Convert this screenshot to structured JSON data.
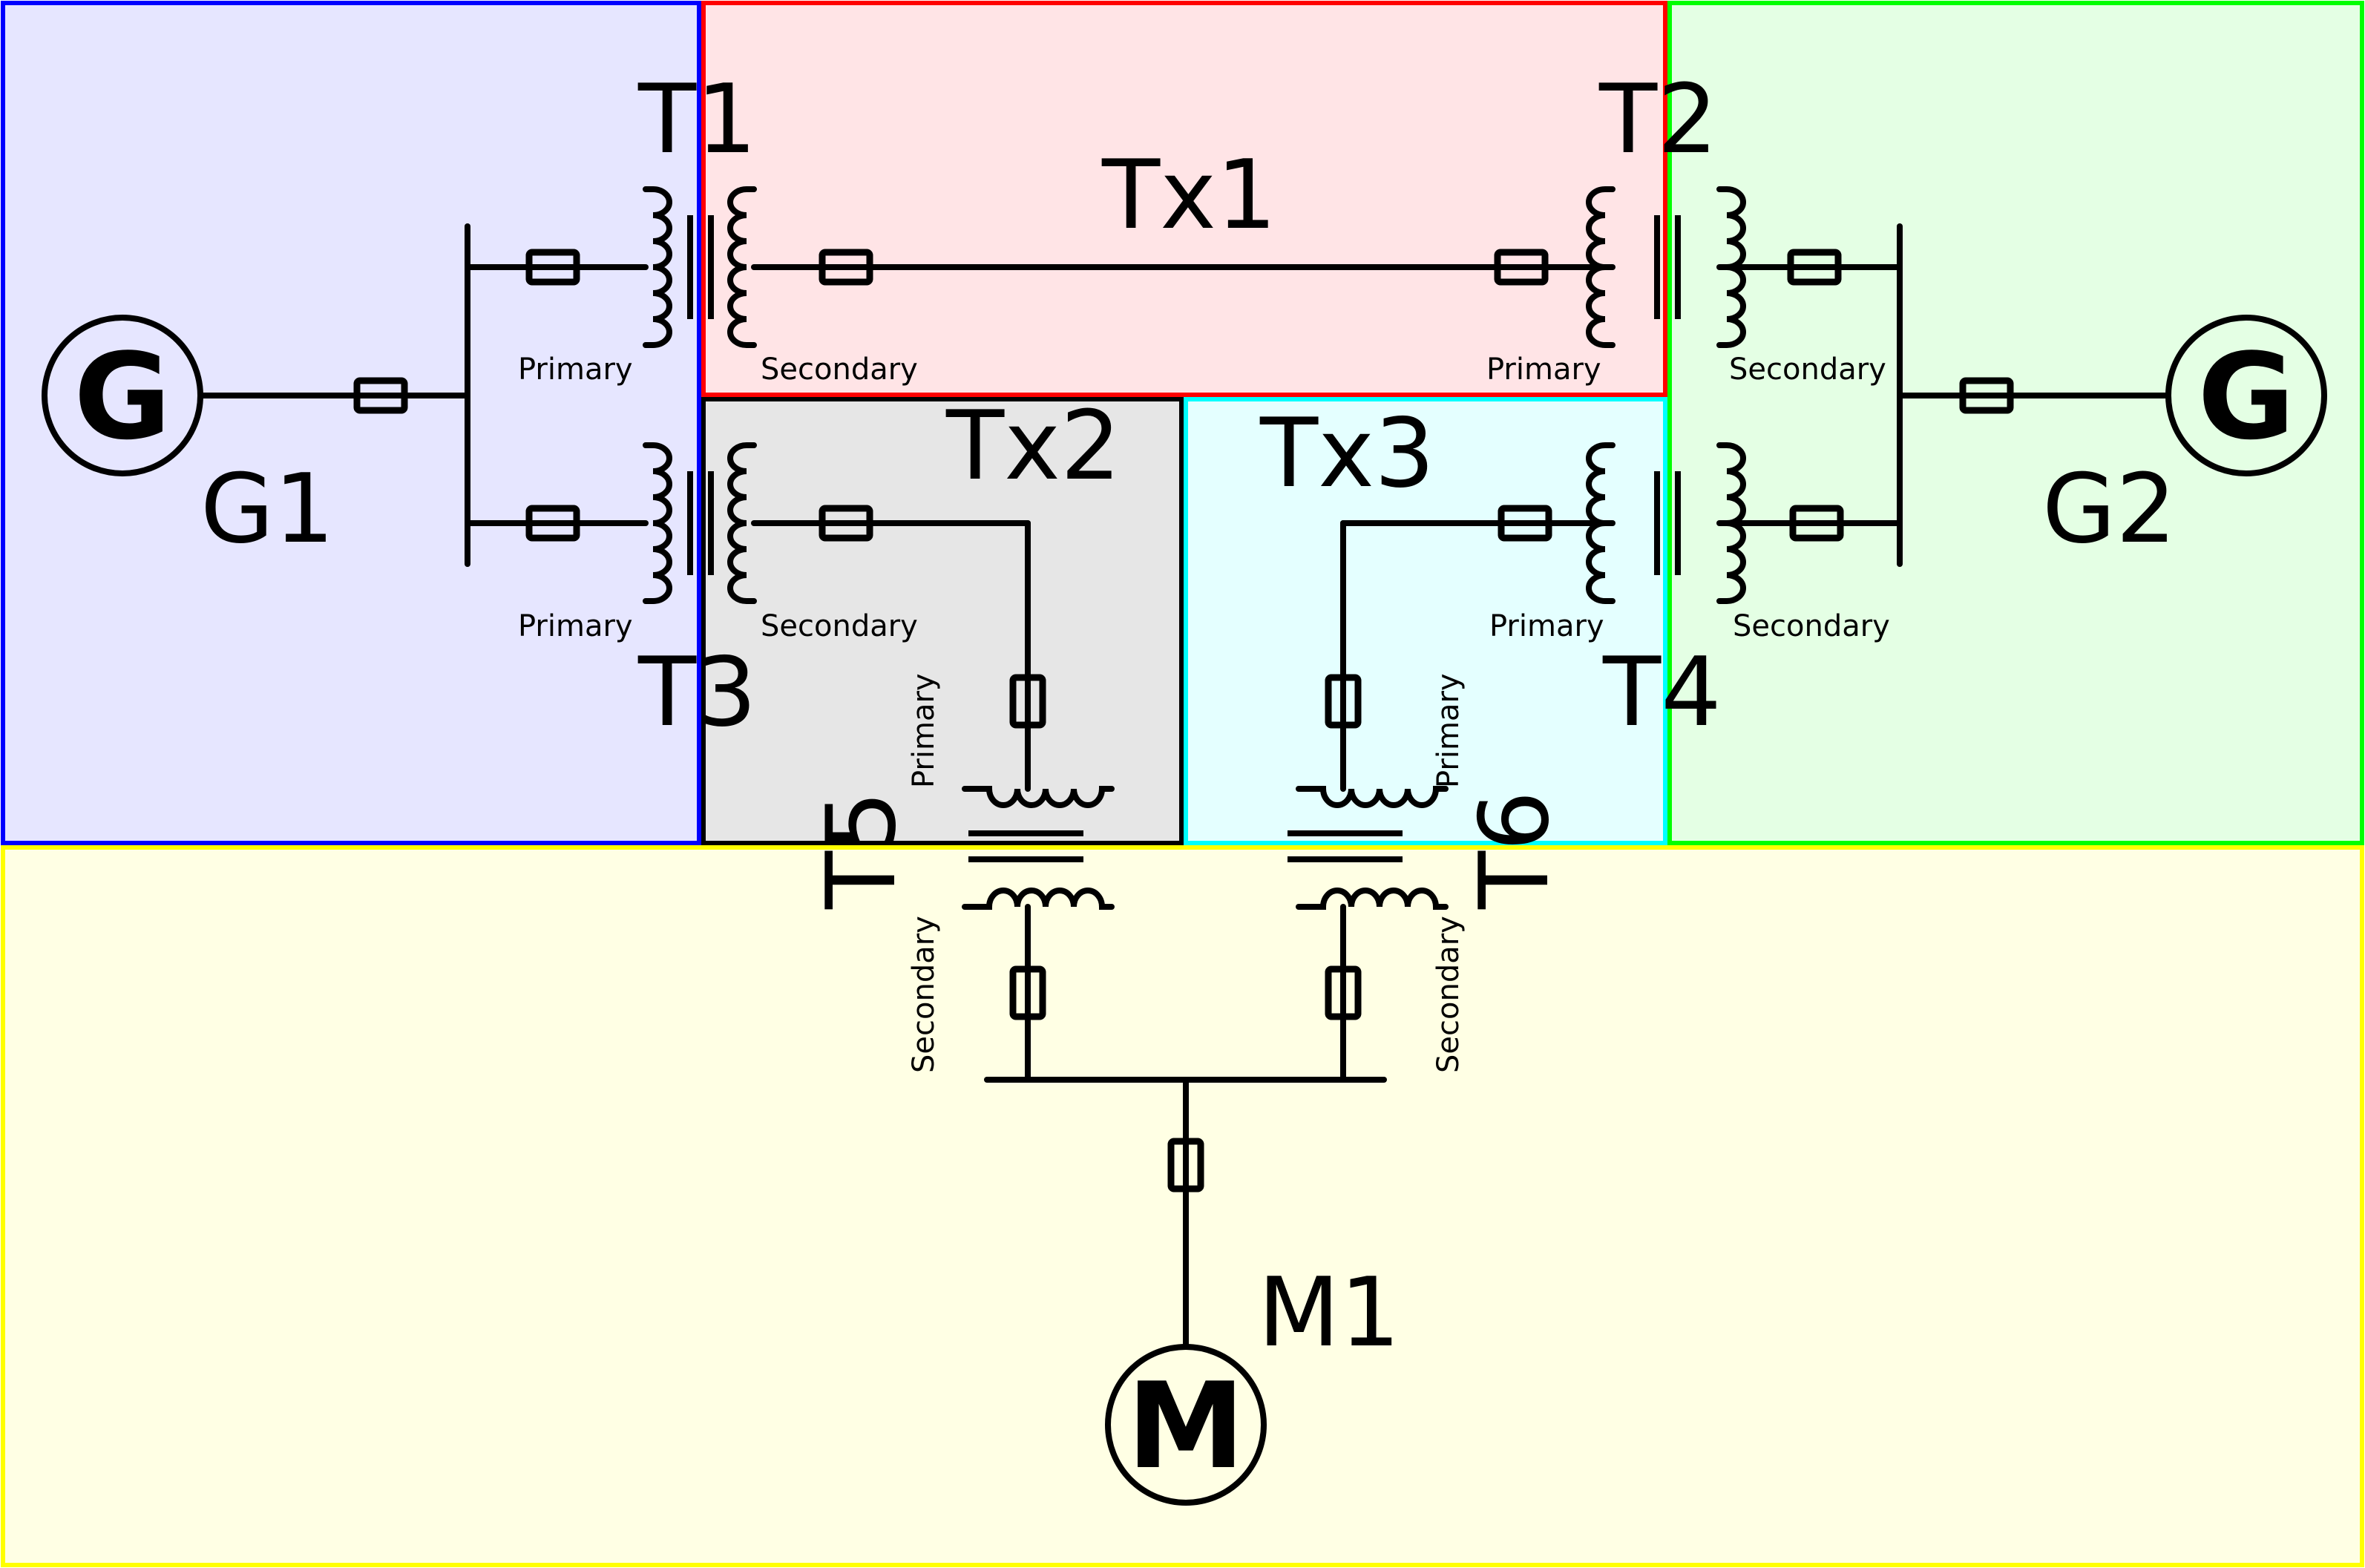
{
  "zones": {
    "g1": {
      "fill": "#e6e6ff",
      "stroke": "#0000ff"
    },
    "tx1": {
      "fill": "#ffe4e6",
      "stroke": "#ff0000"
    },
    "g2": {
      "fill": "#e4ffe4",
      "stroke": "#00ff00"
    },
    "tx2": {
      "fill": "#e6e6e6",
      "stroke": "#000000"
    },
    "tx3": {
      "fill": "#e4ffff",
      "stroke": "#00ffff"
    },
    "m1": {
      "fill": "#ffffe4",
      "stroke": "#ffff00"
    }
  },
  "labels": {
    "g1": "G1",
    "g2": "G2",
    "m1": "M1",
    "t1": "T1",
    "t2": "T2",
    "t3": "T3",
    "t4": "T4",
    "t5": "T5",
    "t6": "T6",
    "tx1": "Tx1",
    "tx2": "Tx2",
    "tx3": "Tx3"
  },
  "symbols": {
    "generator": "G",
    "motor": "M"
  },
  "winding": {
    "primary": "Primary",
    "secondary": "Secondary"
  }
}
